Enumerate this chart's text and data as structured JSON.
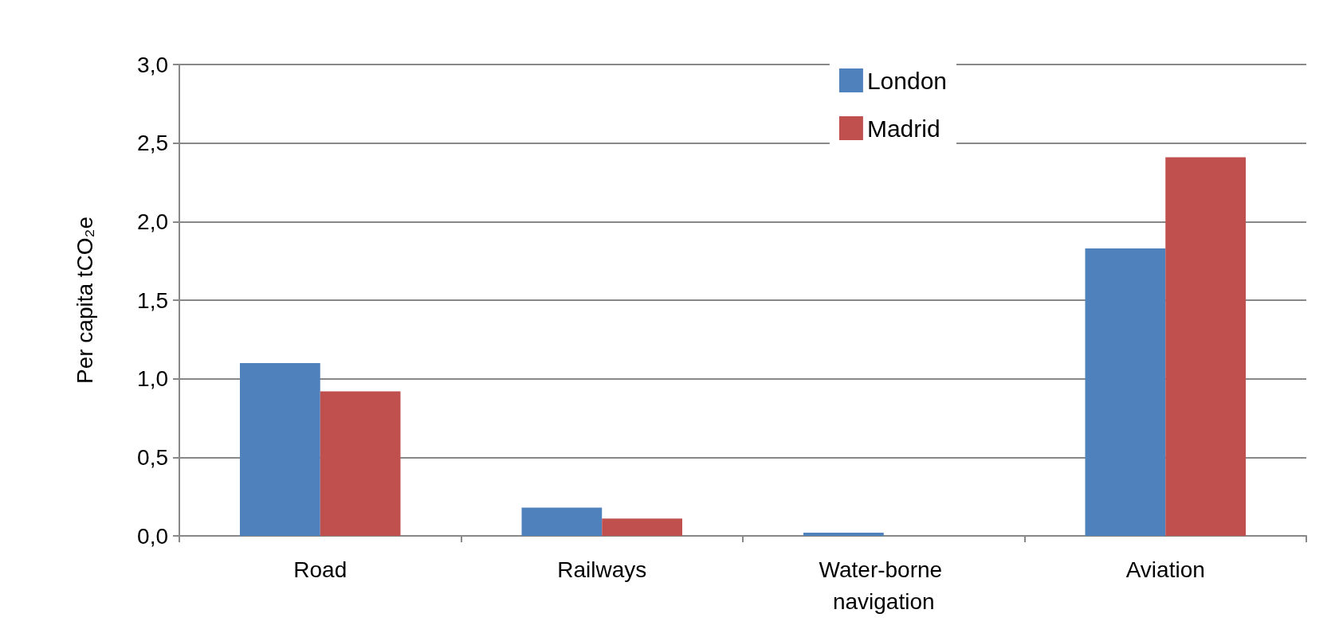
{
  "chart_data": {
    "type": "bar",
    "ylabel": "Per capita tCO₂e",
    "categories": [
      "Road",
      "Railways",
      "Water-borne navigation",
      "Aviation"
    ],
    "series": [
      {
        "name": "London",
        "color": "#4f81bd",
        "values": [
          1.1,
          0.18,
          0.02,
          1.83
        ]
      },
      {
        "name": "Madrid",
        "color": "#c0504d",
        "values": [
          0.92,
          0.11,
          0,
          2.41
        ]
      }
    ],
    "ylim": [
      0,
      3
    ],
    "yticks": [
      {
        "value": 0,
        "label": "0,0"
      },
      {
        "value": 0.5,
        "label": "0,5"
      },
      {
        "value": 1,
        "label": "1,0"
      },
      {
        "value": 1.5,
        "label": "1,5"
      },
      {
        "value": 2,
        "label": "2,0"
      },
      {
        "value": 2.5,
        "label": "2,5"
      },
      {
        "value": 3,
        "label": "3,0"
      }
    ],
    "grid": "y",
    "legend": "top right"
  }
}
